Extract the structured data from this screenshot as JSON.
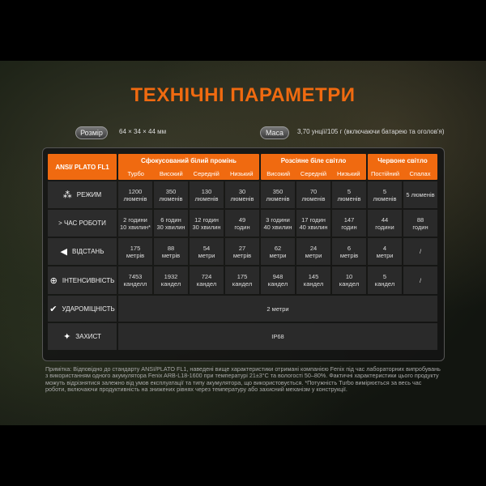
{
  "title": "ТЕХНІЧНІ ПАРАМЕТРИ",
  "size": {
    "label": "Розмір",
    "value": "64 × 34 × 44 мм"
  },
  "weight": {
    "label": "Маса",
    "value": "3,70 унції/105 г (включаючи батарею та оголов'я)"
  },
  "table": {
    "corner": "ANSI/ PLATO FL1",
    "groups": [
      {
        "title": "Сфокусований білий промінь",
        "modes": [
          "Турбо",
          "Високий",
          "Середній",
          "Низький"
        ]
      },
      {
        "title": "Розсіяне біле світло",
        "modes": [
          "Високий",
          "Середній",
          "Низький"
        ]
      },
      {
        "title": "Червоне світло",
        "modes": [
          "Постійний",
          "Спалах"
        ]
      }
    ],
    "rows": [
      {
        "label": "РЕЖИМ",
        "icon": "light-burst-icon",
        "cells": [
          "1200\nлюменів",
          "350\nлюменів",
          "130\nлюменів",
          "30\nлюменів",
          "350\nлюменів",
          "70\nлюменів",
          "5\nлюменів",
          "5\nлюменів",
          "5 люменів"
        ]
      },
      {
        "label": "> ЧАС РОБОТИ",
        "icon": "",
        "cells": [
          "2 години\n10 хвилин*",
          "6 годин\n30 хвилин",
          "12 годин\n30 хвилин",
          "49\nгодин",
          "3 години\n40 хвилин",
          "17 годин\n40 хвилин",
          "147\nгодин",
          "44\nгодини",
          "88\nгодин"
        ]
      },
      {
        "label": "ВІДСТАНЬ",
        "icon": "beam-distance-icon",
        "cells": [
          "175\nметрів",
          "88\nметрів",
          "54\nметри",
          "27\nметрів",
          "62\nметри",
          "24\nметри",
          "6\nметрів",
          "4\nметри",
          "/"
        ]
      },
      {
        "label": "ІНТЕНСИВНІСТЬ",
        "icon": "target-icon",
        "cells": [
          "7453\nканделл",
          "1932\nкандел",
          "724\nкандел",
          "175\nкандел",
          "948\nкандел",
          "145\nкандел",
          "10\nкандел",
          "5\nкандел",
          "/"
        ]
      },
      {
        "label": "УДАРОМІЦНІСТЬ",
        "icon": "impact-check-icon",
        "span": "2 метри"
      },
      {
        "label": "ЗАХИСТ",
        "icon": "waterproof-icon",
        "span": "IP68"
      }
    ]
  },
  "note": "Примітка: Відповідно до стандарту ANSI/PLATO FL1, наведені вище характеристики отримані компанією Fenix під час лабораторних випробувань з використанням одного акумулятора Fenix ARB-L18-1600 при температурі 21±3°C та вологості 50–80%. Фактичні характеристики цього продукту можуть відрізнятися залежно від умов експлуатації та типу акумулятора, що використовується. *Потужність Turbo вимірюється за весь час роботи, включаючи продуктивність на знижених рівнях через температуру або захисний механізм у конструкції."
}
